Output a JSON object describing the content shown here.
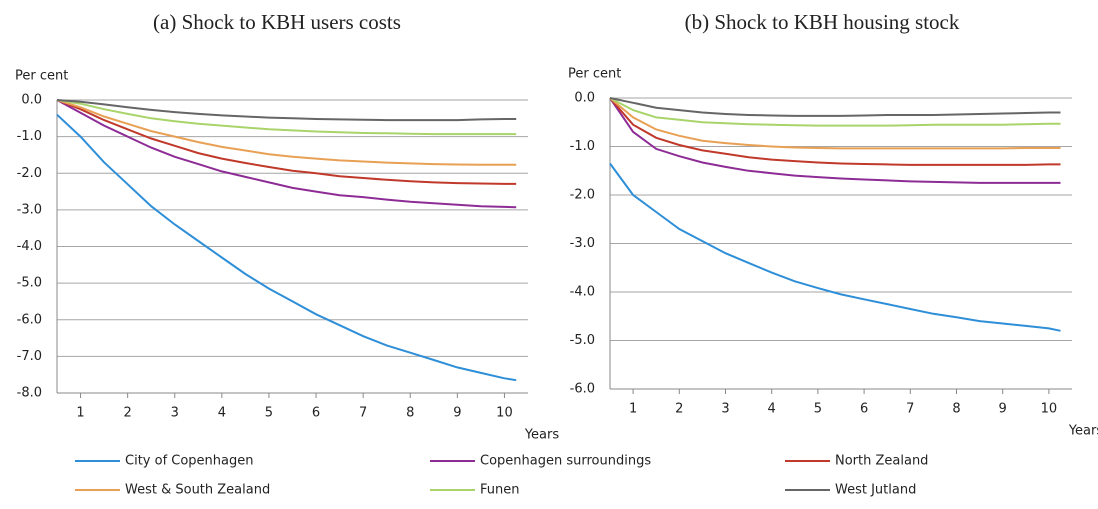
{
  "chart_data": [
    {
      "type": "line",
      "title": "(a) Shock to KBH users costs",
      "ylabel": "Per cent",
      "xlabel": "Years",
      "x": [
        0.5,
        1,
        1.5,
        2,
        2.5,
        3,
        3.5,
        4,
        4.5,
        5,
        5.5,
        6,
        6.5,
        7,
        7.5,
        8,
        8.5,
        9,
        9.5,
        10,
        10.25
      ],
      "xlim": [
        0.5,
        10.5
      ],
      "xticks": [
        1,
        2,
        3,
        4,
        5,
        6,
        7,
        8,
        9,
        10
      ],
      "ylim": [
        -8,
        0
      ],
      "yticks": [
        {
          "value": 0,
          "label": "0.0"
        },
        {
          "value": -1,
          "label": "-1.0"
        },
        {
          "value": -2,
          "label": "-2.0"
        },
        {
          "value": -3,
          "label": "-3.0"
        },
        {
          "value": -4,
          "label": "-4.0"
        },
        {
          "value": -5,
          "label": "-5.0"
        },
        {
          "value": -6,
          "label": "-6.0"
        },
        {
          "value": -7,
          "label": "-7.0"
        },
        {
          "value": -8,
          "label": "-8.0"
        }
      ],
      "grid": true,
      "series": [
        {
          "name": "City of Copenhagen",
          "color": "#2e8fd8",
          "values": [
            -0.4,
            -1.0,
            -1.7,
            -2.3,
            -2.9,
            -3.4,
            -3.85,
            -4.3,
            -4.75,
            -5.15,
            -5.5,
            -5.85,
            -6.15,
            -6.45,
            -6.7,
            -6.9,
            -7.1,
            -7.3,
            -7.45,
            -7.6,
            -7.65
          ]
        },
        {
          "name": "Copenhagen surroundings",
          "color": "#8e2c96",
          "values": [
            0,
            -0.35,
            -0.7,
            -1.0,
            -1.3,
            -1.55,
            -1.75,
            -1.95,
            -2.1,
            -2.25,
            -2.4,
            -2.5,
            -2.6,
            -2.65,
            -2.72,
            -2.78,
            -2.82,
            -2.86,
            -2.9,
            -2.92,
            -2.93
          ]
        },
        {
          "name": "North Zealand",
          "color": "#c0392b",
          "values": [
            0,
            -0.25,
            -0.55,
            -0.8,
            -1.05,
            -1.25,
            -1.45,
            -1.6,
            -1.72,
            -1.83,
            -1.93,
            -2.0,
            -2.08,
            -2.13,
            -2.18,
            -2.22,
            -2.25,
            -2.27,
            -2.28,
            -2.29,
            -2.29
          ]
        },
        {
          "name": "West & South Zealand",
          "color": "#e8a055",
          "values": [
            0,
            -0.2,
            -0.45,
            -0.65,
            -0.85,
            -1.0,
            -1.15,
            -1.28,
            -1.38,
            -1.48,
            -1.55,
            -1.6,
            -1.65,
            -1.68,
            -1.71,
            -1.73,
            -1.75,
            -1.76,
            -1.77,
            -1.77,
            -1.77
          ]
        },
        {
          "name": "Funen",
          "color": "#a8d46a",
          "values": [
            0,
            -0.1,
            -0.25,
            -0.38,
            -0.5,
            -0.58,
            -0.65,
            -0.7,
            -0.75,
            -0.8,
            -0.83,
            -0.86,
            -0.88,
            -0.9,
            -0.91,
            -0.92,
            -0.93,
            -0.93,
            -0.93,
            -0.93,
            -0.93
          ]
        },
        {
          "name": "West Jutland",
          "color": "#666666",
          "values": [
            0,
            -0.05,
            -0.12,
            -0.2,
            -0.27,
            -0.33,
            -0.38,
            -0.42,
            -0.45,
            -0.48,
            -0.5,
            -0.52,
            -0.53,
            -0.54,
            -0.55,
            -0.55,
            -0.55,
            -0.55,
            -0.53,
            -0.52,
            -0.52
          ]
        }
      ]
    },
    {
      "type": "line",
      "title": "(b) Shock to KBH housing stock",
      "ylabel": "Per cent",
      "xlabel": "Years",
      "x": [
        0.5,
        1,
        1.5,
        2,
        2.5,
        3,
        3.5,
        4,
        4.5,
        5,
        5.5,
        6,
        6.5,
        7,
        7.5,
        8,
        8.5,
        9,
        9.5,
        10,
        10.25
      ],
      "xlim": [
        0.5,
        10.5
      ],
      "xticks": [
        1,
        2,
        3,
        4,
        5,
        6,
        7,
        8,
        9,
        10
      ],
      "ylim": [
        -6,
        0
      ],
      "yticks": [
        {
          "value": 0,
          "label": "0.0"
        },
        {
          "value": -1,
          "label": "-1.0"
        },
        {
          "value": -2,
          "label": "-2.0"
        },
        {
          "value": -3,
          "label": "-3.0"
        },
        {
          "value": -4,
          "label": "-4.0"
        },
        {
          "value": -5,
          "label": "-5.0"
        },
        {
          "value": -6,
          "label": "-6.0"
        }
      ],
      "grid": true,
      "series": [
        {
          "color": "#2e8fd8",
          "values": [
            -1.35,
            -2.0,
            -2.35,
            -2.7,
            -2.95,
            -3.2,
            -3.4,
            -3.6,
            -3.78,
            -3.92,
            -4.05,
            -4.15,
            -4.25,
            -4.35,
            -4.45,
            -4.52,
            -4.6,
            -4.65,
            -4.7,
            -4.75,
            -4.8
          ]
        },
        {
          "color": "#8e2c96",
          "values": [
            0,
            -0.7,
            -1.05,
            -1.2,
            -1.33,
            -1.42,
            -1.5,
            -1.55,
            -1.6,
            -1.63,
            -1.66,
            -1.68,
            -1.7,
            -1.72,
            -1.73,
            -1.74,
            -1.75,
            -1.75,
            -1.75,
            -1.75,
            -1.75
          ]
        },
        {
          "color": "#c0392b",
          "values": [
            0,
            -0.55,
            -0.82,
            -0.97,
            -1.08,
            -1.15,
            -1.22,
            -1.27,
            -1.3,
            -1.33,
            -1.35,
            -1.36,
            -1.37,
            -1.38,
            -1.38,
            -1.38,
            -1.38,
            -1.38,
            -1.38,
            -1.37,
            -1.37
          ]
        },
        {
          "color": "#e8a055",
          "values": [
            0,
            -0.4,
            -0.65,
            -0.78,
            -0.88,
            -0.93,
            -0.97,
            -1.0,
            -1.02,
            -1.03,
            -1.04,
            -1.04,
            -1.04,
            -1.04,
            -1.04,
            -1.04,
            -1.04,
            -1.04,
            -1.03,
            -1.03,
            -1.03
          ]
        },
        {
          "color": "#a8d46a",
          "values": [
            0,
            -0.25,
            -0.4,
            -0.45,
            -0.5,
            -0.52,
            -0.54,
            -0.55,
            -0.56,
            -0.57,
            -0.57,
            -0.57,
            -0.57,
            -0.56,
            -0.55,
            -0.55,
            -0.55,
            -0.55,
            -0.54,
            -0.53,
            -0.53
          ]
        },
        {
          "color": "#666666",
          "values": [
            0,
            -0.1,
            -0.2,
            -0.25,
            -0.3,
            -0.33,
            -0.35,
            -0.36,
            -0.37,
            -0.37,
            -0.37,
            -0.36,
            -0.35,
            -0.35,
            -0.35,
            -0.34,
            -0.33,
            -0.32,
            -0.31,
            -0.3,
            -0.3
          ]
        }
      ]
    }
  ]
}
